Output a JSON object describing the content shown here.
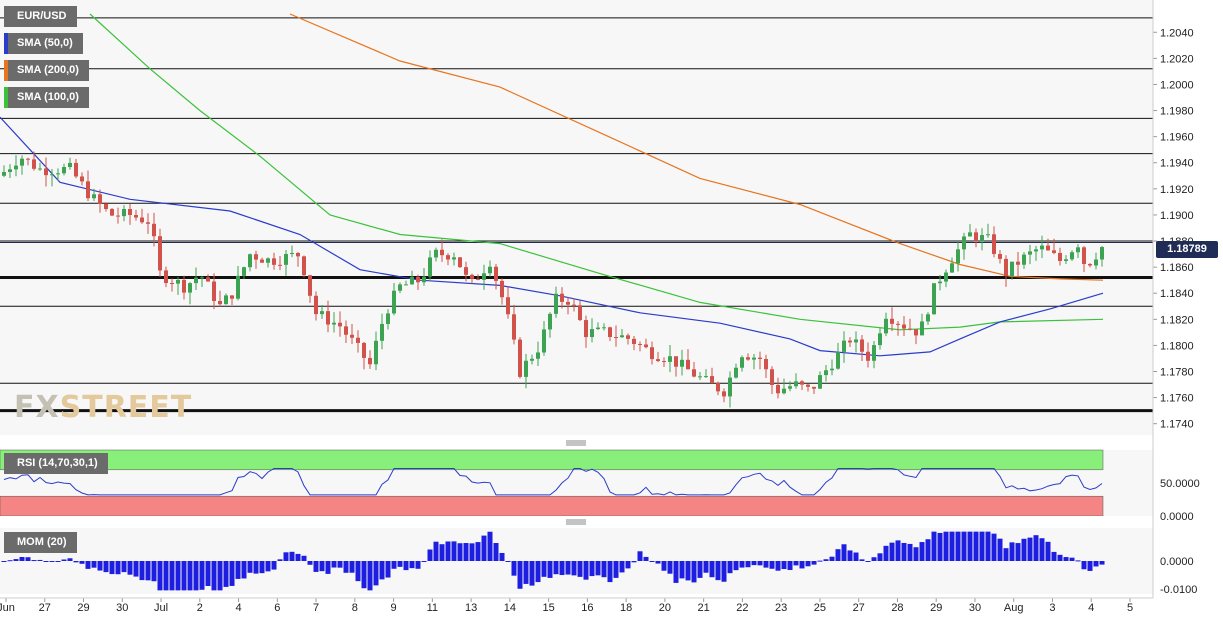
{
  "symbol_label": "EUR/USD",
  "indicator_labels": [
    {
      "text": "SMA (50,0)",
      "color": "#2a3ccc"
    },
    {
      "text": "SMA (200,0)",
      "color": "#e8741f"
    },
    {
      "text": "SMA (100,0)",
      "color": "#3ac23a"
    }
  ],
  "rsi_label": "RSI (14,70,30,1)",
  "mom_label": "MOM (20)",
  "current_price": "1.18789",
  "watermark": {
    "left": "FX",
    "right": "STREET"
  },
  "chart_data": {
    "type": "candlestick",
    "main": {
      "y_ticks": [
        "1.2040",
        "1.2020",
        "1.2000",
        "1.1980",
        "1.1960",
        "1.1940",
        "1.1920",
        "1.1900",
        "1.1880",
        "1.1860",
        "1.1840",
        "1.1820",
        "1.1800",
        "1.1780",
        "1.1760",
        "1.1740"
      ],
      "ylim": [
        1.1739,
        1.2054
      ],
      "horizontal_levels": [
        1.2051,
        1.2012,
        1.1974,
        1.1947,
        1.1909,
        1.188,
        1.1852,
        1.183,
        1.1771,
        1.175
      ],
      "thick_levels": [
        1.1852,
        1.175
      ],
      "current_price": 1.18789
    },
    "x_labels": [
      "Jun",
      "27",
      "29",
      "30",
      "Jul",
      "2",
      "4",
      "6",
      "7",
      "8",
      "9",
      "11",
      "13",
      "14",
      "15",
      "16",
      "18",
      "20",
      "21",
      "22",
      "23",
      "25",
      "27",
      "28",
      "29",
      "30",
      "Aug",
      "3",
      "4",
      "5"
    ],
    "rsi": {
      "y_ticks": [
        "50.0000",
        "0.0000"
      ],
      "overbought": 70,
      "oversold": 30,
      "level_mid": 50
    },
    "momentum": {
      "y_ticks": [
        "0.0000",
        "-0.0100"
      ],
      "ylim": [
        -0.0118,
        0.0118
      ]
    },
    "series_colors": {
      "up": "#3ca352",
      "down": "#d1524a",
      "sma50": "#2a3ccc",
      "sma200": "#e8741f",
      "sma100": "#3ac23a",
      "rsi": "#2a3ccc",
      "mom": "#1e1ee0"
    }
  }
}
